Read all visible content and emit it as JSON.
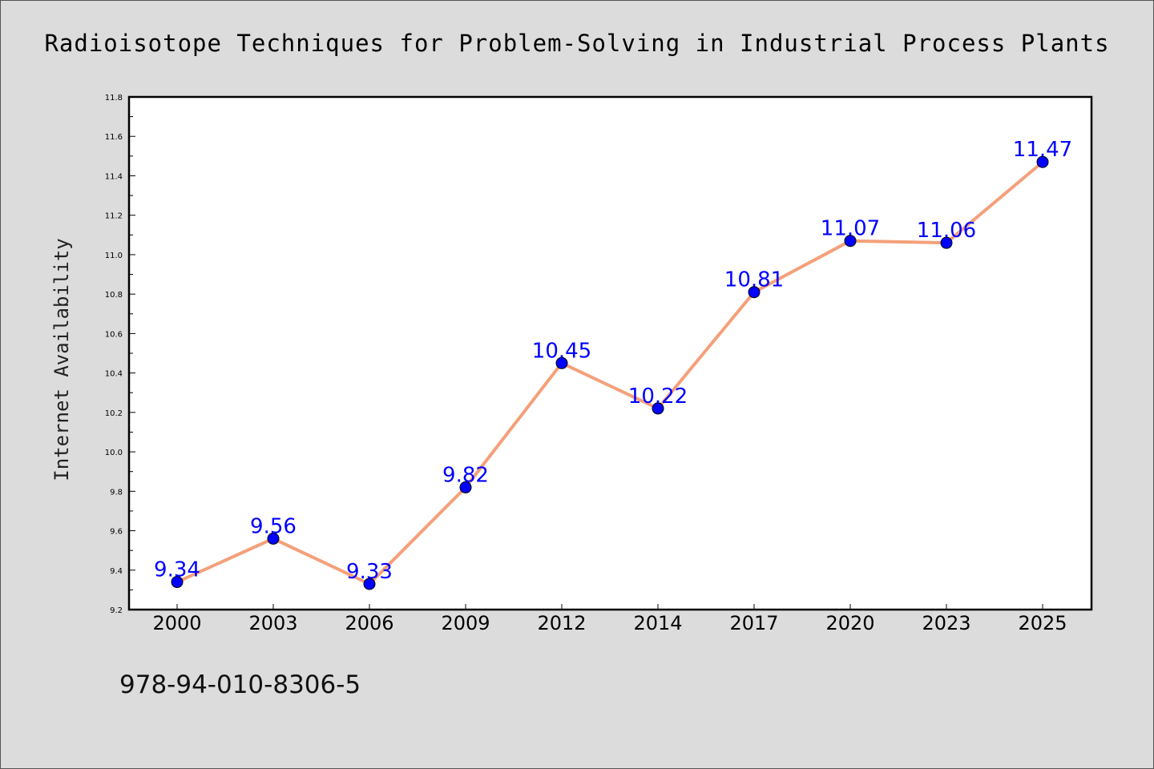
{
  "colors": {
    "background": "#dcdcdc",
    "plot_background": "#ffffff",
    "line": "#f4a07a",
    "marker": "#0000ff",
    "data_label": "#0000ff"
  },
  "footer": {
    "isbn": "978-94-010-8306-5"
  },
  "chart_data": {
    "type": "line",
    "title": "Radioisotope Techniques for Problem-Solving in Industrial Process Plants",
    "xlabel": "",
    "ylabel": "Internet Availability",
    "categories": [
      "2000",
      "2003",
      "2006",
      "2009",
      "2012",
      "2014",
      "2017",
      "2020",
      "2023",
      "2025"
    ],
    "values": [
      9.34,
      9.56,
      9.33,
      9.82,
      10.45,
      10.22,
      10.81,
      11.07,
      11.06,
      11.47
    ],
    "data_labels": [
      "9.34",
      "9.56",
      "9.33",
      "9.82",
      "10.45",
      "10.22",
      "10.81",
      "11.07",
      "11.06",
      "11.47"
    ],
    "ylim": [
      9.2,
      11.8
    ],
    "yticks": [
      "9.2",
      "9.4",
      "9.6",
      "9.8",
      "10.0",
      "10.2",
      "10.4",
      "10.6",
      "10.8",
      "11.0",
      "11.2",
      "11.4",
      "11.6",
      "11.8"
    ],
    "grid": false,
    "legend": "none"
  }
}
